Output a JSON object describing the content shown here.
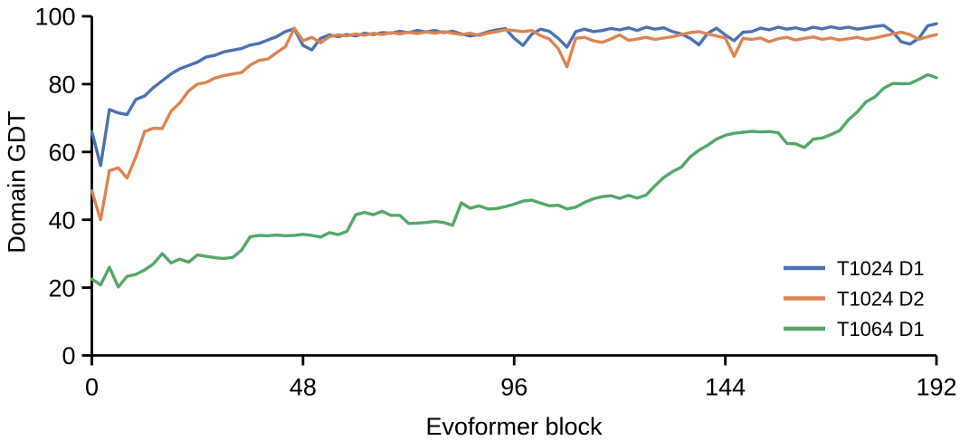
{
  "figure": {
    "background": "#ffffff",
    "text_color": "#000000"
  },
  "chart_data": {
    "type": "line",
    "title": "",
    "xlabel": "Evoformer block",
    "ylabel": "Domain GDT",
    "xlim": [
      0,
      192
    ],
    "ylim": [
      0,
      100
    ],
    "xticks": [
      0,
      48,
      96,
      144,
      192
    ],
    "yticks": [
      0,
      20,
      40,
      60,
      80,
      100
    ],
    "grid": false,
    "legend_position": "lower right",
    "axis_color": "#000000",
    "x": [
      0,
      2,
      4,
      6,
      8,
      10,
      12,
      14,
      16,
      18,
      20,
      22,
      24,
      26,
      28,
      30,
      32,
      34,
      36,
      38,
      40,
      42,
      44,
      46,
      48,
      50,
      52,
      54,
      56,
      58,
      60,
      62,
      64,
      66,
      68,
      70,
      72,
      74,
      76,
      78,
      80,
      82,
      84,
      86,
      88,
      90,
      92,
      94,
      96,
      98,
      100,
      102,
      104,
      106,
      108,
      110,
      112,
      114,
      116,
      118,
      120,
      122,
      124,
      126,
      128,
      130,
      132,
      134,
      136,
      138,
      140,
      142,
      144,
      146,
      148,
      150,
      152,
      154,
      156,
      158,
      160,
      162,
      164,
      166,
      168,
      170,
      172,
      174,
      176,
      178,
      180,
      182,
      184,
      186,
      188,
      190,
      192
    ],
    "series": [
      {
        "name": "T1024 D1",
        "color": "#4C72B0",
        "values": [
          66,
          56,
          72.5,
          71.5,
          71,
          75.5,
          76.5,
          79,
          81,
          83,
          84.5,
          85.5,
          86.5,
          88,
          88.5,
          89.5,
          90,
          90.5,
          91.5,
          92,
          93,
          94,
          95.5,
          96.3,
          91.4,
          90.1,
          93.5,
          94.5,
          94,
          94.6,
          94.2,
          95,
          94.6,
          95.2,
          95,
          95.6,
          95.2,
          95.8,
          95.4,
          95.8,
          95.2,
          95.6,
          94.8,
          94.2,
          94.6,
          95.4,
          96,
          96.4,
          93.5,
          91.4,
          94.7,
          96.2,
          95.6,
          93.5,
          90.9,
          95.5,
          96.2,
          95.5,
          95.8,
          96.4,
          96,
          96.6,
          95.8,
          96.8,
          96.2,
          96.6,
          95.5,
          94.8,
          93.5,
          91.6,
          95,
          96.5,
          94.5,
          92.8,
          95.3,
          95.5,
          96.5,
          96,
          96.8,
          96.2,
          96.6,
          96,
          96.8,
          96.3,
          96.9,
          96.4,
          96.8,
          96.2,
          96.6,
          97,
          97.3,
          95.5,
          92.5,
          91.8,
          93.5,
          97.2,
          97.8
        ]
      },
      {
        "name": "T1024 D2",
        "color": "#DD8452",
        "values": [
          48.5,
          40,
          54.5,
          55.3,
          52.3,
          58.5,
          66,
          67,
          66.9,
          72,
          74.5,
          78,
          80,
          80.5,
          81.8,
          82.5,
          83,
          83.4,
          85.6,
          87,
          87.4,
          89.3,
          91,
          96.5,
          92.8,
          93.8,
          92.2,
          94,
          94.5,
          94.2,
          94.8,
          94.4,
          95,
          94.6,
          95.2,
          94.8,
          95.3,
          94.9,
          95.4,
          95,
          95.5,
          95,
          94.6,
          95,
          94.4,
          95,
          95.5,
          96,
          95.8,
          95.5,
          95.8,
          94.3,
          93.3,
          90.5,
          85.1,
          93.5,
          93.8,
          92.8,
          92.3,
          93.3,
          94.5,
          92.9,
          93.3,
          93.8,
          93.2,
          93.6,
          94,
          94.6,
          95.2,
          95.5,
          94.8,
          94.2,
          93.6,
          88.2,
          93.5,
          93.2,
          93.6,
          92.5,
          93.4,
          93.8,
          93,
          93.5,
          93.9,
          93.2,
          93.6,
          93,
          93.4,
          93.8,
          93.2,
          93.6,
          94.2,
          94.8,
          95.3,
          94.6,
          93.2,
          94,
          94.6
        ]
      },
      {
        "name": "T1064 D1",
        "color": "#55A868",
        "values": [
          22.5,
          20.8,
          26,
          20.2,
          23.3,
          23.9,
          25.2,
          27,
          30,
          27.3,
          28.4,
          27.5,
          29.6,
          29.2,
          28.8,
          28.6,
          28.9,
          31,
          35,
          35.4,
          35.3,
          35.5,
          35.3,
          35.4,
          35.7,
          35.4,
          34.9,
          36.2,
          35.6,
          36.6,
          41.5,
          42.2,
          41.5,
          42.5,
          41.3,
          41.3,
          38.9,
          39,
          39.2,
          39.5,
          39.2,
          38.4,
          45,
          43.4,
          44.1,
          43.2,
          43.3,
          43.9,
          44.6,
          45.5,
          45.8,
          44.9,
          44.1,
          44.3,
          43.2,
          43.7,
          45.1,
          46.2,
          46.8,
          47.1,
          46.3,
          47.2,
          46.4,
          47.3,
          50,
          52.5,
          54.2,
          55.5,
          58.5,
          60.5,
          62,
          63.8,
          64.9,
          65.5,
          65.8,
          66.1,
          65.9,
          66,
          65.7,
          62.5,
          62.4,
          61.3,
          63.8,
          64.1,
          65.1,
          66.3,
          69.5,
          71.8,
          74.8,
          76.2,
          78.8,
          80.2,
          80.1,
          80.2,
          81.4,
          82.8,
          81.9
        ]
      }
    ]
  }
}
